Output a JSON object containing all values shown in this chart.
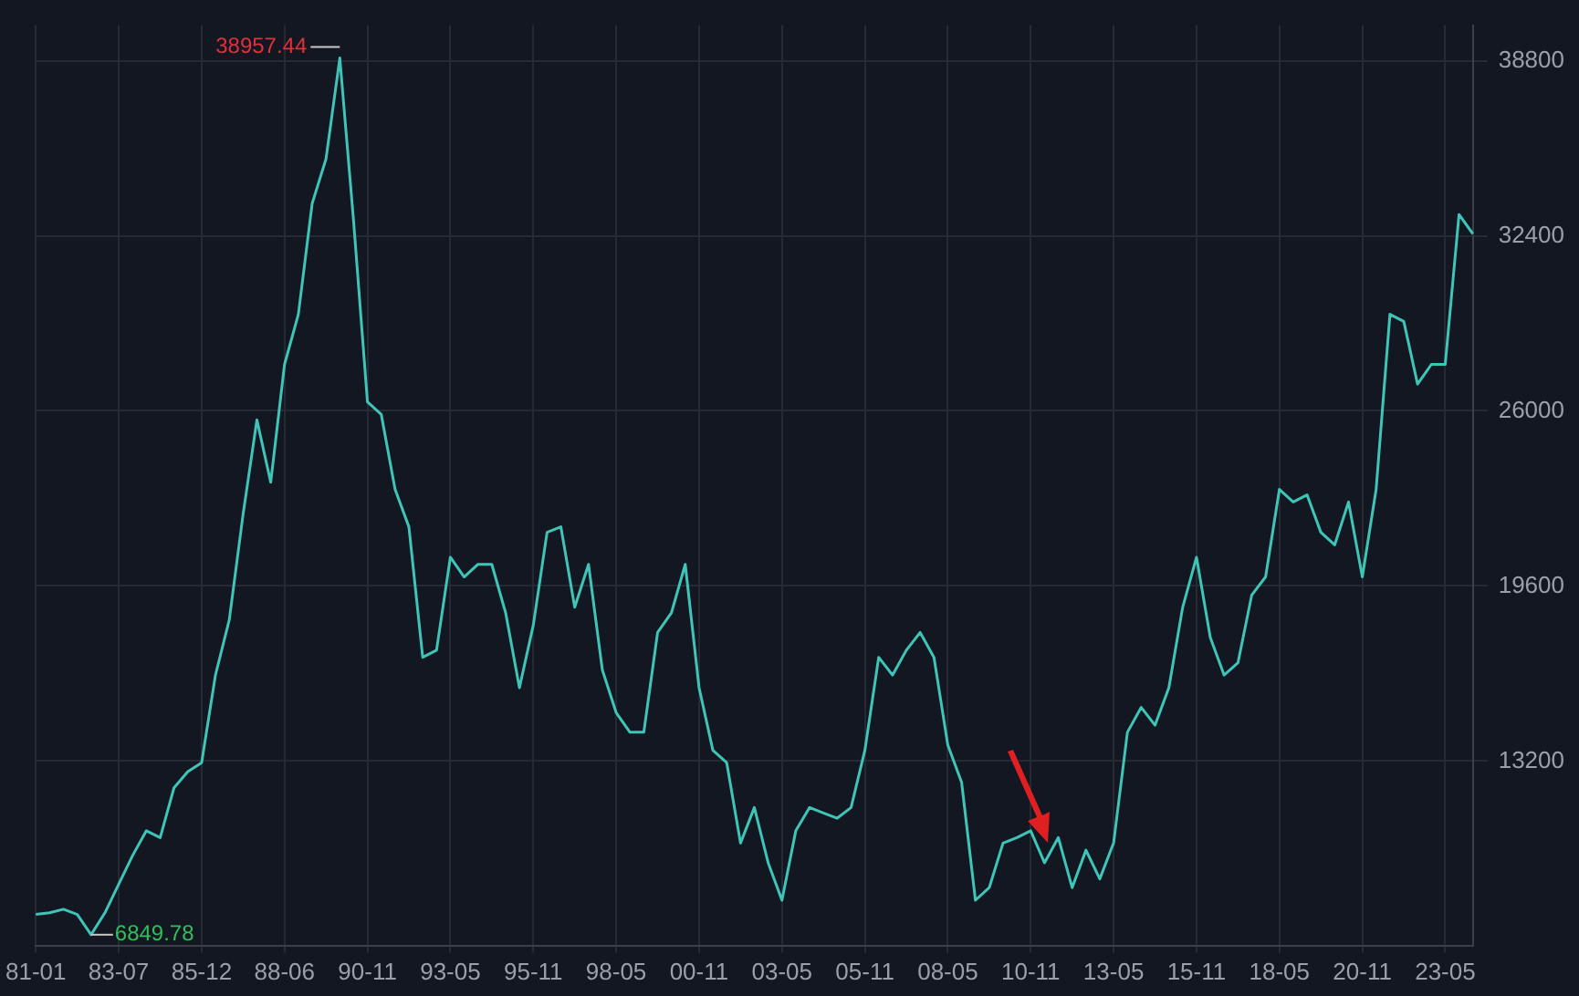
{
  "chart_data": {
    "type": "line",
    "categories": [
      "81-01",
      null,
      null,
      null,
      null,
      null,
      "83-07",
      null,
      null,
      null,
      null,
      null,
      "85-12",
      null,
      null,
      null,
      null,
      null,
      "88-06",
      null,
      null,
      null,
      null,
      null,
      "90-11",
      null,
      null,
      null,
      null,
      null,
      "93-05",
      null,
      null,
      null,
      null,
      null,
      "95-11",
      null,
      null,
      null,
      null,
      null,
      "98-05",
      null,
      null,
      null,
      null,
      null,
      "00-11",
      null,
      null,
      null,
      null,
      null,
      "03-05",
      null,
      null,
      null,
      null,
      null,
      "05-11",
      null,
      null,
      null,
      null,
      null,
      "08-05",
      null,
      null,
      null,
      null,
      null,
      "10-11",
      null,
      null,
      null,
      null,
      null,
      "13-05",
      null,
      null,
      null,
      null,
      null,
      "15-11",
      null,
      null,
      null,
      null,
      null,
      "18-05",
      null,
      null,
      null,
      null,
      null,
      "20-11",
      null,
      null,
      null,
      null,
      null,
      "23-05",
      null,
      null
    ],
    "series": [
      {
        "color": "#3fc5b8",
        "values": [
          7590,
          7650,
          7780,
          7590,
          6850,
          7650,
          8700,
          9740,
          10650,
          10400,
          12220,
          12810,
          13140,
          16340,
          18360,
          22220,
          25670,
          23390,
          27700,
          29530,
          33580,
          35210,
          38900,
          32920,
          26330,
          25870,
          23130,
          21760,
          16990,
          17250,
          20650,
          19930,
          20390,
          20390,
          18620,
          15880,
          18160,
          21560,
          21760,
          18820,
          20390,
          16530,
          14970,
          14250,
          14250,
          17900,
          18620,
          20390,
          15880,
          13590,
          13140,
          10200,
          11500,
          9480,
          8110,
          10650,
          11500,
          11300,
          11110,
          11500,
          13590,
          16990,
          16340,
          17250,
          17900,
          16990,
          13790,
          12420,
          8110,
          8570,
          10200,
          10400,
          10650,
          9480,
          10400,
          8570,
          9940,
          8890,
          10200,
          14250,
          15160,
          14510,
          15880,
          18820,
          20650,
          17710,
          16340,
          16790,
          19270,
          19930,
          23130,
          22670,
          22930,
          21560,
          21100,
          22670,
          19930,
          23130,
          29530,
          29270,
          26980,
          27700,
          27700,
          33180,
          32470
        ]
      }
    ],
    "ylim": [
      6450,
      40100
    ],
    "yticks": [
      13200,
      19600,
      26000,
      32400,
      38800
    ],
    "grid": true,
    "legend": false,
    "marker": "none",
    "line_style": "solid",
    "annotations": [
      "38957.44",
      "6849.78"
    ]
  }
}
